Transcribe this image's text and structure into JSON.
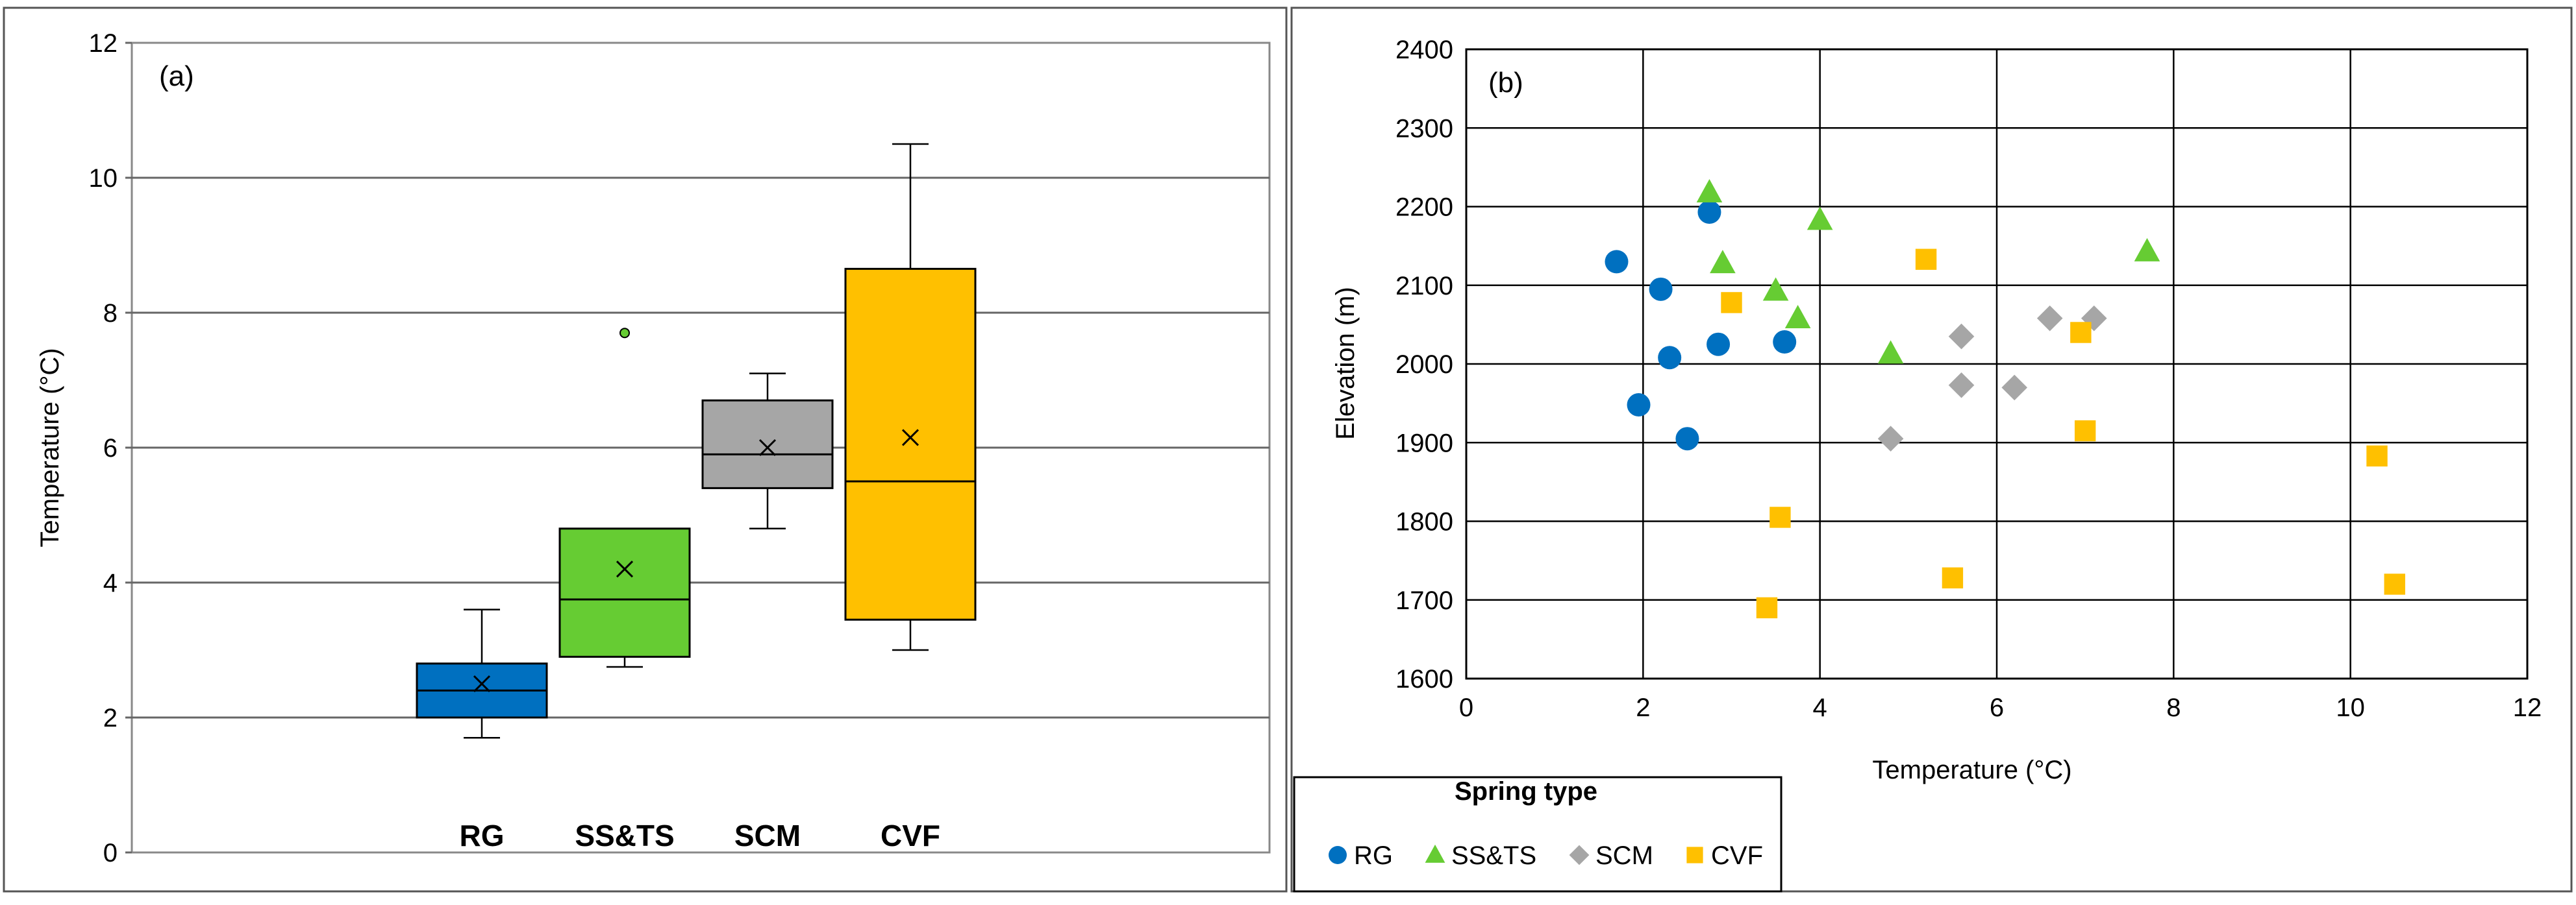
{
  "chart_data": [
    {
      "type": "box",
      "panel_label": "(a)",
      "ylabel": "Temperature (°C)",
      "ylim": [
        0,
        12
      ],
      "yticks": [
        0,
        2,
        4,
        6,
        8,
        10,
        12
      ],
      "grid": true,
      "categories": [
        "RG",
        "SS&TS",
        "SCM",
        "CVF"
      ],
      "boxes": [
        {
          "name": "RG",
          "color": "#0070C0",
          "min": 1.7,
          "q1": 2.0,
          "median": 2.4,
          "q3": 2.8,
          "max": 3.6,
          "mean": 2.5,
          "outliers": []
        },
        {
          "name": "SS&TS",
          "color": "#66CC33",
          "min": 2.75,
          "q1": 2.9,
          "median": 3.75,
          "q3": 4.8,
          "max": 4.8,
          "mean": 4.2,
          "outliers": [
            7.7
          ]
        },
        {
          "name": "SCM",
          "color": "#A6A6A6",
          "min": 4.8,
          "q1": 5.4,
          "median": 5.9,
          "q3": 6.7,
          "max": 7.1,
          "mean": 6.0,
          "outliers": []
        },
        {
          "name": "CVF",
          "color": "#FFC000",
          "min": 3.0,
          "q1": 3.45,
          "median": 5.5,
          "q3": 8.65,
          "max": 10.5,
          "mean": 6.15,
          "outliers": []
        }
      ]
    },
    {
      "type": "scatter",
      "panel_label": "(b)",
      "xlabel": "Temperature (°C)",
      "ylabel": "Elevation (m)",
      "xlim": [
        0,
        12
      ],
      "ylim": [
        1600,
        2400
      ],
      "xticks": [
        0,
        2,
        4,
        6,
        8,
        10,
        12
      ],
      "yticks": [
        1600,
        1700,
        1800,
        1900,
        2000,
        2100,
        2200,
        2300,
        2400
      ],
      "grid": true,
      "legend_title": "Spring type",
      "legend_position": "bottom-left",
      "series": [
        {
          "name": "RG",
          "marker": "circle",
          "color": "#0070C0",
          "points": [
            [
              1.7,
              2130
            ],
            [
              2.2,
              2095
            ],
            [
              2.75,
              2193
            ],
            [
              2.3,
              2008
            ],
            [
              2.85,
              2025
            ],
            [
              3.6,
              2028
            ],
            [
              1.95,
              1948
            ],
            [
              2.5,
              1905
            ]
          ]
        },
        {
          "name": "SS&TS",
          "marker": "triangle",
          "color": "#66CC33",
          "points": [
            [
              2.75,
              2218
            ],
            [
              2.9,
              2128
            ],
            [
              3.5,
              2093
            ],
            [
              3.75,
              2058
            ],
            [
              4.0,
              2183
            ],
            [
              4.8,
              2013
            ],
            [
              7.7,
              2143
            ]
          ]
        },
        {
          "name": "SCM",
          "marker": "diamond",
          "color": "#A6A6A6",
          "points": [
            [
              4.8,
              1905
            ],
            [
              5.6,
              2035
            ],
            [
              5.6,
              1973
            ],
            [
              6.2,
              1970
            ],
            [
              6.6,
              2058
            ],
            [
              7.1,
              2058
            ]
          ]
        },
        {
          "name": "CVF",
          "marker": "square",
          "color": "#FFC000",
          "points": [
            [
              3.0,
              2078
            ],
            [
              5.2,
              2133
            ],
            [
              6.95,
              2040
            ],
            [
              7.0,
              1915
            ],
            [
              3.55,
              1805
            ],
            [
              5.5,
              1728
            ],
            [
              3.4,
              1690
            ],
            [
              10.3,
              1883
            ],
            [
              10.5,
              1720
            ]
          ]
        }
      ]
    }
  ]
}
